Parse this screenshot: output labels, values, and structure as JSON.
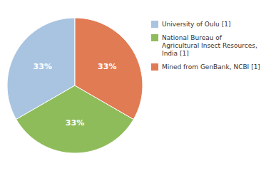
{
  "chart_data": {
    "type": "pie",
    "categories": [
      "University of Oulu [1]",
      "National Bureau of\nAgricultural Insect Resources,\nIndia [1]",
      "Mined from GenBank, NCBI [1]"
    ],
    "values": [
      33.33,
      33.33,
      33.33
    ],
    "value_labels": [
      "33%",
      "33%",
      "33%"
    ],
    "colors": [
      "#a8c4e0",
      "#8fbc5a",
      "#e07b54"
    ],
    "data_labels": true,
    "legend": "right"
  }
}
